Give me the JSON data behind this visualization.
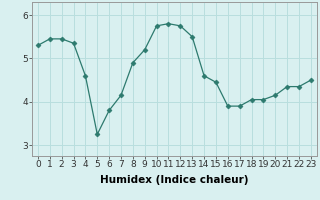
{
  "x": [
    0,
    1,
    2,
    3,
    4,
    5,
    6,
    7,
    8,
    9,
    10,
    11,
    12,
    13,
    14,
    15,
    16,
    17,
    18,
    19,
    20,
    21,
    22,
    23
  ],
  "y": [
    5.3,
    5.45,
    5.45,
    5.35,
    4.6,
    3.25,
    3.8,
    4.15,
    4.9,
    5.2,
    5.75,
    5.8,
    5.75,
    5.5,
    4.6,
    4.45,
    3.9,
    3.9,
    4.05,
    4.05,
    4.15,
    4.35,
    4.35,
    4.5
  ],
  "xlabel": "Humidex (Indice chaleur)",
  "xlim": [
    -0.5,
    23.5
  ],
  "ylim": [
    2.75,
    6.3
  ],
  "yticks": [
    3,
    4,
    5,
    6
  ],
  "xtick_labels": [
    "0",
    "1",
    "2",
    "3",
    "4",
    "5",
    "6",
    "7",
    "8",
    "9",
    "10",
    "11",
    "12",
    "13",
    "14",
    "15",
    "16",
    "17",
    "18",
    "19",
    "20",
    "21",
    "22",
    "23"
  ],
  "line_color": "#2d7a6e",
  "marker": "D",
  "marker_size": 2.5,
  "bg_color": "#d9f0f0",
  "grid_color": "#b8dede",
  "xlabel_fontsize": 7.5,
  "tick_fontsize": 6.5
}
